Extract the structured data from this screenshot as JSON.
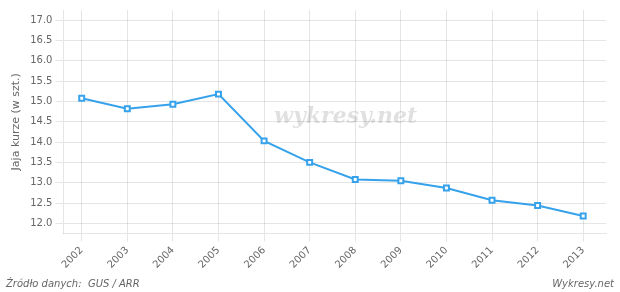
{
  "chart_data": {
    "type": "line",
    "y_label": "Jaja kurze (w szt.)",
    "x": [
      2002,
      2003,
      2004,
      2005,
      2006,
      2007,
      2008,
      2009,
      2010,
      2011,
      2012,
      2013
    ],
    "values": [
      15.08,
      14.82,
      14.93,
      15.18,
      14.03,
      13.5,
      13.08,
      13.05,
      12.87,
      12.57,
      12.44,
      12.18
    ],
    "marker": "square",
    "xlim": [
      2001.6,
      2013.5
    ],
    "xticks": [
      2002,
      2003,
      2004,
      2005,
      2006,
      2007,
      2008,
      2009,
      2010,
      2011,
      2012,
      2013
    ],
    "ylim": [
      11.75,
      17.25
    ],
    "yticks": [
      {
        "value": 12,
        "label": "12.0"
      },
      12.5,
      {
        "value": 13,
        "label": "13.0"
      },
      13.5,
      {
        "value": 14,
        "label": "14.0"
      },
      14.5,
      {
        "value": 15,
        "label": "15.0"
      },
      15.5,
      {
        "value": 16,
        "label": "16.0"
      },
      16.5,
      {
        "value": 17,
        "label": "17.0"
      }
    ],
    "grid": true,
    "annotations": [
      "wykresy.net",
      "Źródło danych:  GUS / ARR",
      "Wykresy.net"
    ]
  }
}
